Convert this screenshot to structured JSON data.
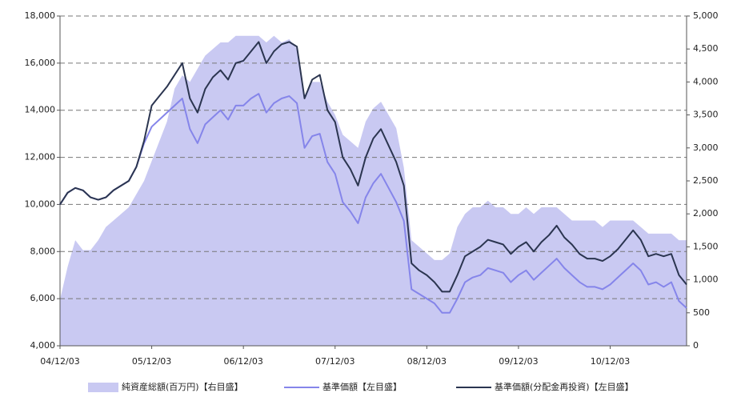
{
  "chart_data": {
    "type": "line",
    "x": [
      "04/12/03",
      "05/01/03",
      "05/02/03",
      "05/03/03",
      "05/04/03",
      "05/05/03",
      "05/06/03",
      "05/07/03",
      "05/08/03",
      "05/09/03",
      "05/10/03",
      "05/11/03",
      "05/12/03",
      "06/01/03",
      "06/02/03",
      "06/03/03",
      "06/04/03",
      "06/05/03",
      "06/06/03",
      "06/07/03",
      "06/08/03",
      "06/09/03",
      "06/10/03",
      "06/11/03",
      "06/12/03",
      "07/01/03",
      "07/02/03",
      "07/03/03",
      "07/04/03",
      "07/05/03",
      "07/06/03",
      "07/07/03",
      "07/08/03",
      "07/09/03",
      "07/10/03",
      "07/11/03",
      "07/12/03",
      "08/01/03",
      "08/02/03",
      "08/03/03",
      "08/04/03",
      "08/05/03",
      "08/06/03",
      "08/07/03",
      "08/08/03",
      "08/09/03",
      "08/10/03",
      "08/11/03",
      "08/12/03",
      "09/01/03",
      "09/02/03",
      "09/03/03",
      "09/04/03",
      "09/05/03",
      "09/06/03",
      "09/07/03",
      "09/08/03",
      "09/09/03",
      "09/10/03",
      "09/11/03",
      "09/12/03",
      "10/01/03",
      "10/02/03",
      "10/03/03",
      "10/04/03",
      "10/05/03",
      "10/06/03",
      "10/07/03",
      "10/08/03",
      "10/09/03",
      "10/10/03",
      "10/11/03",
      "10/12/03",
      "11/01/03",
      "11/02/03",
      "11/03/03",
      "11/04/03",
      "11/05/03",
      "11/06/03",
      "11/07/03",
      "11/08/03",
      "11/09/03",
      "11/10/03"
    ],
    "xlim": [
      "04/12/03",
      "11/10/03"
    ],
    "xticks": [
      "04/12/03",
      "05/12/03",
      "06/12/03",
      "07/12/03",
      "08/12/03",
      "09/12/03",
      "10/12/03"
    ],
    "ylim": [
      4000,
      18000
    ],
    "yticks": [
      {
        "value": 4000,
        "label": "4,000"
      },
      {
        "value": 6000,
        "label": "6,000"
      },
      {
        "value": 8000,
        "label": "8,000"
      },
      {
        "value": 10000,
        "label": "10,000"
      },
      {
        "value": 12000,
        "label": "12,000"
      },
      {
        "value": 14000,
        "label": "14,000"
      },
      {
        "value": 16000,
        "label": "16,000"
      },
      {
        "value": 18000,
        "label": "18,000"
      }
    ],
    "y2lim": [
      0,
      5000
    ],
    "y2ticks": [
      0,
      500,
      {
        "value": 1000,
        "label": "1,000"
      },
      {
        "value": 1500,
        "label": "1,500"
      },
      {
        "value": 2000,
        "label": "2,000"
      },
      {
        "value": 2500,
        "label": "2,500"
      },
      {
        "value": 3000,
        "label": "3,000"
      },
      {
        "value": 3500,
        "label": "3,500"
      },
      {
        "value": 4000,
        "label": "4,000"
      },
      {
        "value": 4500,
        "label": "4,500"
      },
      {
        "value": 5000,
        "label": "5,000"
      }
    ],
    "grid": true,
    "series": [
      {
        "name": "純資産総額(百万円)【右目盛】",
        "color": "#c9c9f2",
        "axis": "y2",
        "kind": "area",
        "values": [
          700,
          1200,
          1600,
          1450,
          1450,
          1600,
          1800,
          1900,
          2000,
          2100,
          2300,
          2500,
          2800,
          3100,
          3400,
          3900,
          4100,
          4000,
          4200,
          4400,
          4500,
          4600,
          4600,
          4700,
          4700,
          4700,
          4700,
          4600,
          4700,
          4600,
          4650,
          4500,
          3800,
          4000,
          4000,
          3700,
          3500,
          3200,
          3100,
          3000,
          3400,
          3600,
          3700,
          3500,
          3300,
          2700,
          1600,
          1500,
          1400,
          1300,
          1300,
          1400,
          1800,
          2000,
          2100,
          2100,
          2200,
          2100,
          2100,
          2000,
          2000,
          2100,
          2000,
          2100,
          2100,
          2100,
          2000,
          1900,
          1900,
          1900,
          1900,
          1800,
          1900,
          1900,
          1900,
          1900,
          1800,
          1700,
          1700,
          1700,
          1700,
          1600,
          1600
        ]
      },
      {
        "name": "基準価額【左目盛】",
        "color": "#8585ea",
        "values": [
          10000,
          10500,
          10700,
          10600,
          10300,
          10200,
          10300,
          10600,
          10800,
          11000,
          11600,
          12600,
          13300,
          13600,
          13900,
          14200,
          14500,
          13200,
          12600,
          13400,
          13700,
          14000,
          13600,
          14200,
          14200,
          14500,
          14700,
          13900,
          14300,
          14500,
          14600,
          14300,
          12400,
          12900,
          13000,
          11800,
          11300,
          10100,
          9700,
          9200,
          10300,
          10900,
          11300,
          10700,
          10100,
          9300,
          6400,
          6200,
          6000,
          5800,
          5400,
          5400,
          6000,
          6700,
          6900,
          7000,
          7300,
          7200,
          7100,
          6700,
          7000,
          7200,
          6800,
          7100,
          7400,
          7700,
          7300,
          7000,
          6700,
          6500,
          6500,
          6400,
          6600,
          6900,
          7200,
          7500,
          7200,
          6600,
          6700,
          6500,
          6700,
          5900,
          5600
        ]
      },
      {
        "name": "基準価額(分配金再投資)【左目盛】",
        "color": "#2b3550",
        "values": [
          10000,
          10500,
          10700,
          10600,
          10300,
          10200,
          10300,
          10600,
          10800,
          11000,
          11600,
          12700,
          14200,
          14600,
          15000,
          15500,
          16000,
          14500,
          13900,
          14900,
          15400,
          15700,
          15300,
          16000,
          16100,
          16500,
          16900,
          16000,
          16500,
          16800,
          16900,
          16700,
          14500,
          15300,
          15500,
          14000,
          13500,
          12000,
          11500,
          10800,
          12000,
          12800,
          13200,
          12500,
          11800,
          10800,
          7500,
          7200,
          7000,
          6700,
          6300,
          6300,
          7000,
          7800,
          8000,
          8200,
          8500,
          8400,
          8300,
          7900,
          8200,
          8400,
          8000,
          8400,
          8700,
          9100,
          8600,
          8300,
          7900,
          7700,
          7700,
          7600,
          7800,
          8100,
          8500,
          8900,
          8500,
          7800,
          7900,
          7800,
          7900,
          7000,
          6600
        ]
      }
    ]
  }
}
